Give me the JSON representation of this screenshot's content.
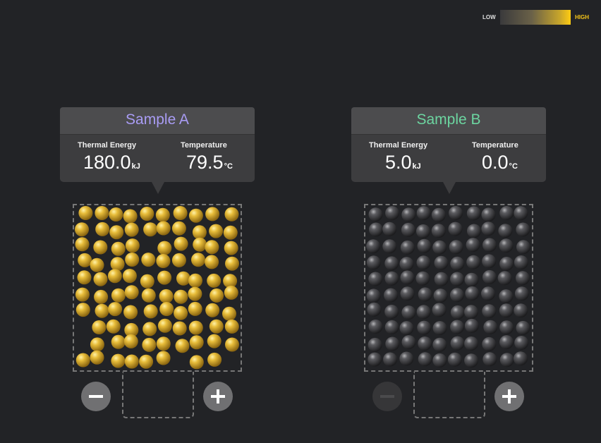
{
  "legend": {
    "low_label": "LOW",
    "high_label": "HIGH",
    "low_color": "#3a3a3c",
    "high_color": "#ffcc12"
  },
  "samples": [
    {
      "title": "Sample A",
      "title_color": "#a99cf4",
      "thermal_energy_label": "Thermal Energy",
      "thermal_energy_value": "180.0",
      "thermal_energy_unit": "kJ",
      "temperature_label": "Temperature",
      "temperature_value": "79.5",
      "temperature_unit": "°C",
      "particle_color": "#d8a92a",
      "particle_state": "hot",
      "decrease_icon": "minus-icon",
      "increase_icon": "plus-icon",
      "decrease_enabled": true,
      "increase_enabled": true
    },
    {
      "title": "Sample B",
      "title_color": "#6cd5a0",
      "thermal_energy_label": "Thermal Energy",
      "thermal_energy_value": "5.0",
      "thermal_energy_unit": "kJ",
      "temperature_label": "Temperature",
      "temperature_value": "0.0",
      "temperature_unit": "°C",
      "particle_color": "#4a4a4c",
      "particle_state": "cold",
      "decrease_icon": "minus-icon",
      "increase_icon": "plus-icon",
      "decrease_enabled": false,
      "increase_enabled": true
    }
  ]
}
